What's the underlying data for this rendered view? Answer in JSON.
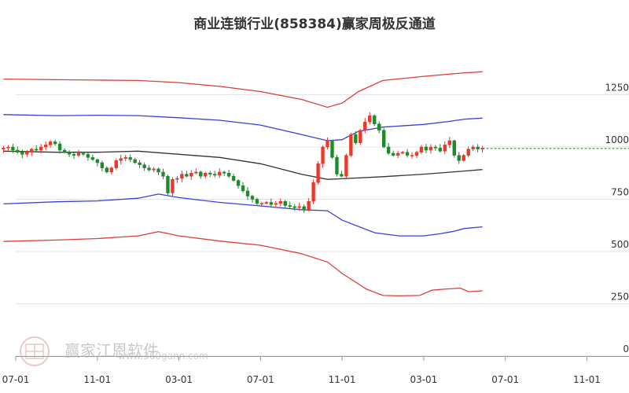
{
  "chart_data": {
    "type": "candlestick",
    "title": "商业连锁行业(858384)赢家周极反通道",
    "xlabel": "",
    "ylabel": "",
    "ylim": [
      0,
      1470
    ],
    "y_ticks": [
      0,
      250,
      500,
      750,
      1000,
      1250
    ],
    "y_axis_position": "right",
    "x_ticks": [
      "07-01",
      "11-01",
      "03-01",
      "07-01",
      "11-01",
      "03-01",
      "07-01",
      "11-01"
    ],
    "x_range": [
      0,
      7.15
    ],
    "grid": "horizontal",
    "colors": {
      "up": "#e8392c",
      "down": "#1e8b2a",
      "outer_band": "#d9403a",
      "inner_band": "#3b3fd8",
      "mid_line": "#333333",
      "reference_line": "#1e8b2a"
    },
    "reference_line_value": 993,
    "candles": {
      "x_start": -0.15,
      "x_end": 5.72,
      "closes": [
        995,
        1000,
        985,
        975,
        965,
        975,
        990,
        985,
        1000,
        1010,
        1025,
        1015,
        985,
        975,
        965,
        960,
        970,
        965,
        950,
        940,
        925,
        900,
        880,
        900,
        935,
        945,
        950,
        940,
        925,
        915,
        900,
        890,
        895,
        880,
        860,
        780,
        845,
        850,
        870,
        860,
        875,
        880,
        860,
        875,
        870,
        865,
        880,
        875,
        860,
        840,
        815,
        790,
        765,
        750,
        730,
        730,
        735,
        725,
        730,
        740,
        720,
        715,
        710,
        715,
        700,
        740,
        830,
        920,
        1000,
        1030,
        950,
        870,
        860,
        960,
        1060,
        1020,
        1080,
        1120,
        1150,
        1110,
        1080,
        1000,
        970,
        960,
        970,
        975,
        960,
        960,
        975,
        1000,
        985,
        1000,
        995,
        980,
        1010,
        1030,
        960,
        935,
        960,
        990,
        1000,
        990,
        995
      ],
      "period_sd": 14.7,
      "mid_line": [
        [
          -0.15,
          980
        ],
        [
          0.5,
          975
        ],
        [
          1.0,
          975
        ],
        [
          1.5,
          980
        ],
        [
          2.0,
          965
        ],
        [
          2.5,
          950
        ],
        [
          3.0,
          920
        ],
        [
          3.5,
          870
        ],
        [
          3.82,
          845
        ],
        [
          4.0,
          848
        ],
        [
          4.5,
          858
        ],
        [
          5.0,
          870
        ],
        [
          5.5,
          885
        ],
        [
          5.72,
          892
        ]
      ],
      "inner_upper": [
        [
          -0.15,
          1155
        ],
        [
          0.5,
          1150
        ],
        [
          1.0,
          1152
        ],
        [
          1.5,
          1150
        ],
        [
          2.0,
          1140
        ],
        [
          2.5,
          1128
        ],
        [
          3.0,
          1105
        ],
        [
          3.5,
          1060
        ],
        [
          3.82,
          1030
        ],
        [
          4.0,
          1035
        ],
        [
          4.2,
          1075
        ],
        [
          4.5,
          1095
        ],
        [
          5.0,
          1108
        ],
        [
          5.3,
          1122
        ],
        [
          5.5,
          1133
        ],
        [
          5.72,
          1138
        ]
      ],
      "inner_lower": [
        [
          -0.15,
          728
        ],
        [
          0.5,
          738
        ],
        [
          1.0,
          742
        ],
        [
          1.5,
          755
        ],
        [
          1.75,
          775
        ],
        [
          2.0,
          758
        ],
        [
          2.5,
          735
        ],
        [
          3.0,
          718
        ],
        [
          3.5,
          700
        ],
        [
          3.82,
          695
        ],
        [
          4.0,
          650
        ],
        [
          4.4,
          590
        ],
        [
          4.7,
          575
        ],
        [
          5.0,
          575
        ],
        [
          5.2,
          585
        ],
        [
          5.35,
          595
        ],
        [
          5.5,
          610
        ],
        [
          5.72,
          618
        ]
      ],
      "outer_upper": [
        [
          -0.15,
          1325
        ],
        [
          0.5,
          1322
        ],
        [
          1.0,
          1320
        ],
        [
          1.5,
          1318
        ],
        [
          2.0,
          1308
        ],
        [
          2.5,
          1290
        ],
        [
          3.0,
          1265
        ],
        [
          3.5,
          1228
        ],
        [
          3.82,
          1190
        ],
        [
          4.0,
          1210
        ],
        [
          4.2,
          1265
        ],
        [
          4.5,
          1318
        ],
        [
          5.0,
          1338
        ],
        [
          5.5,
          1355
        ],
        [
          5.72,
          1360
        ]
      ],
      "outer_lower": [
        [
          -0.15,
          548
        ],
        [
          0.5,
          555
        ],
        [
          1.0,
          562
        ],
        [
          1.5,
          575
        ],
        [
          1.75,
          595
        ],
        [
          2.0,
          575
        ],
        [
          2.5,
          550
        ],
        [
          3.0,
          530
        ],
        [
          3.5,
          490
        ],
        [
          3.82,
          450
        ],
        [
          4.0,
          395
        ],
        [
          4.3,
          320
        ],
        [
          4.5,
          290
        ],
        [
          4.7,
          288
        ],
        [
          4.95,
          290
        ],
        [
          5.1,
          315
        ],
        [
          5.25,
          320
        ],
        [
          5.45,
          325
        ],
        [
          5.55,
          308
        ],
        [
          5.72,
          312
        ]
      ]
    },
    "watermark": {
      "text": "赢家江恩软件",
      "url": "www.360gann.com"
    }
  }
}
